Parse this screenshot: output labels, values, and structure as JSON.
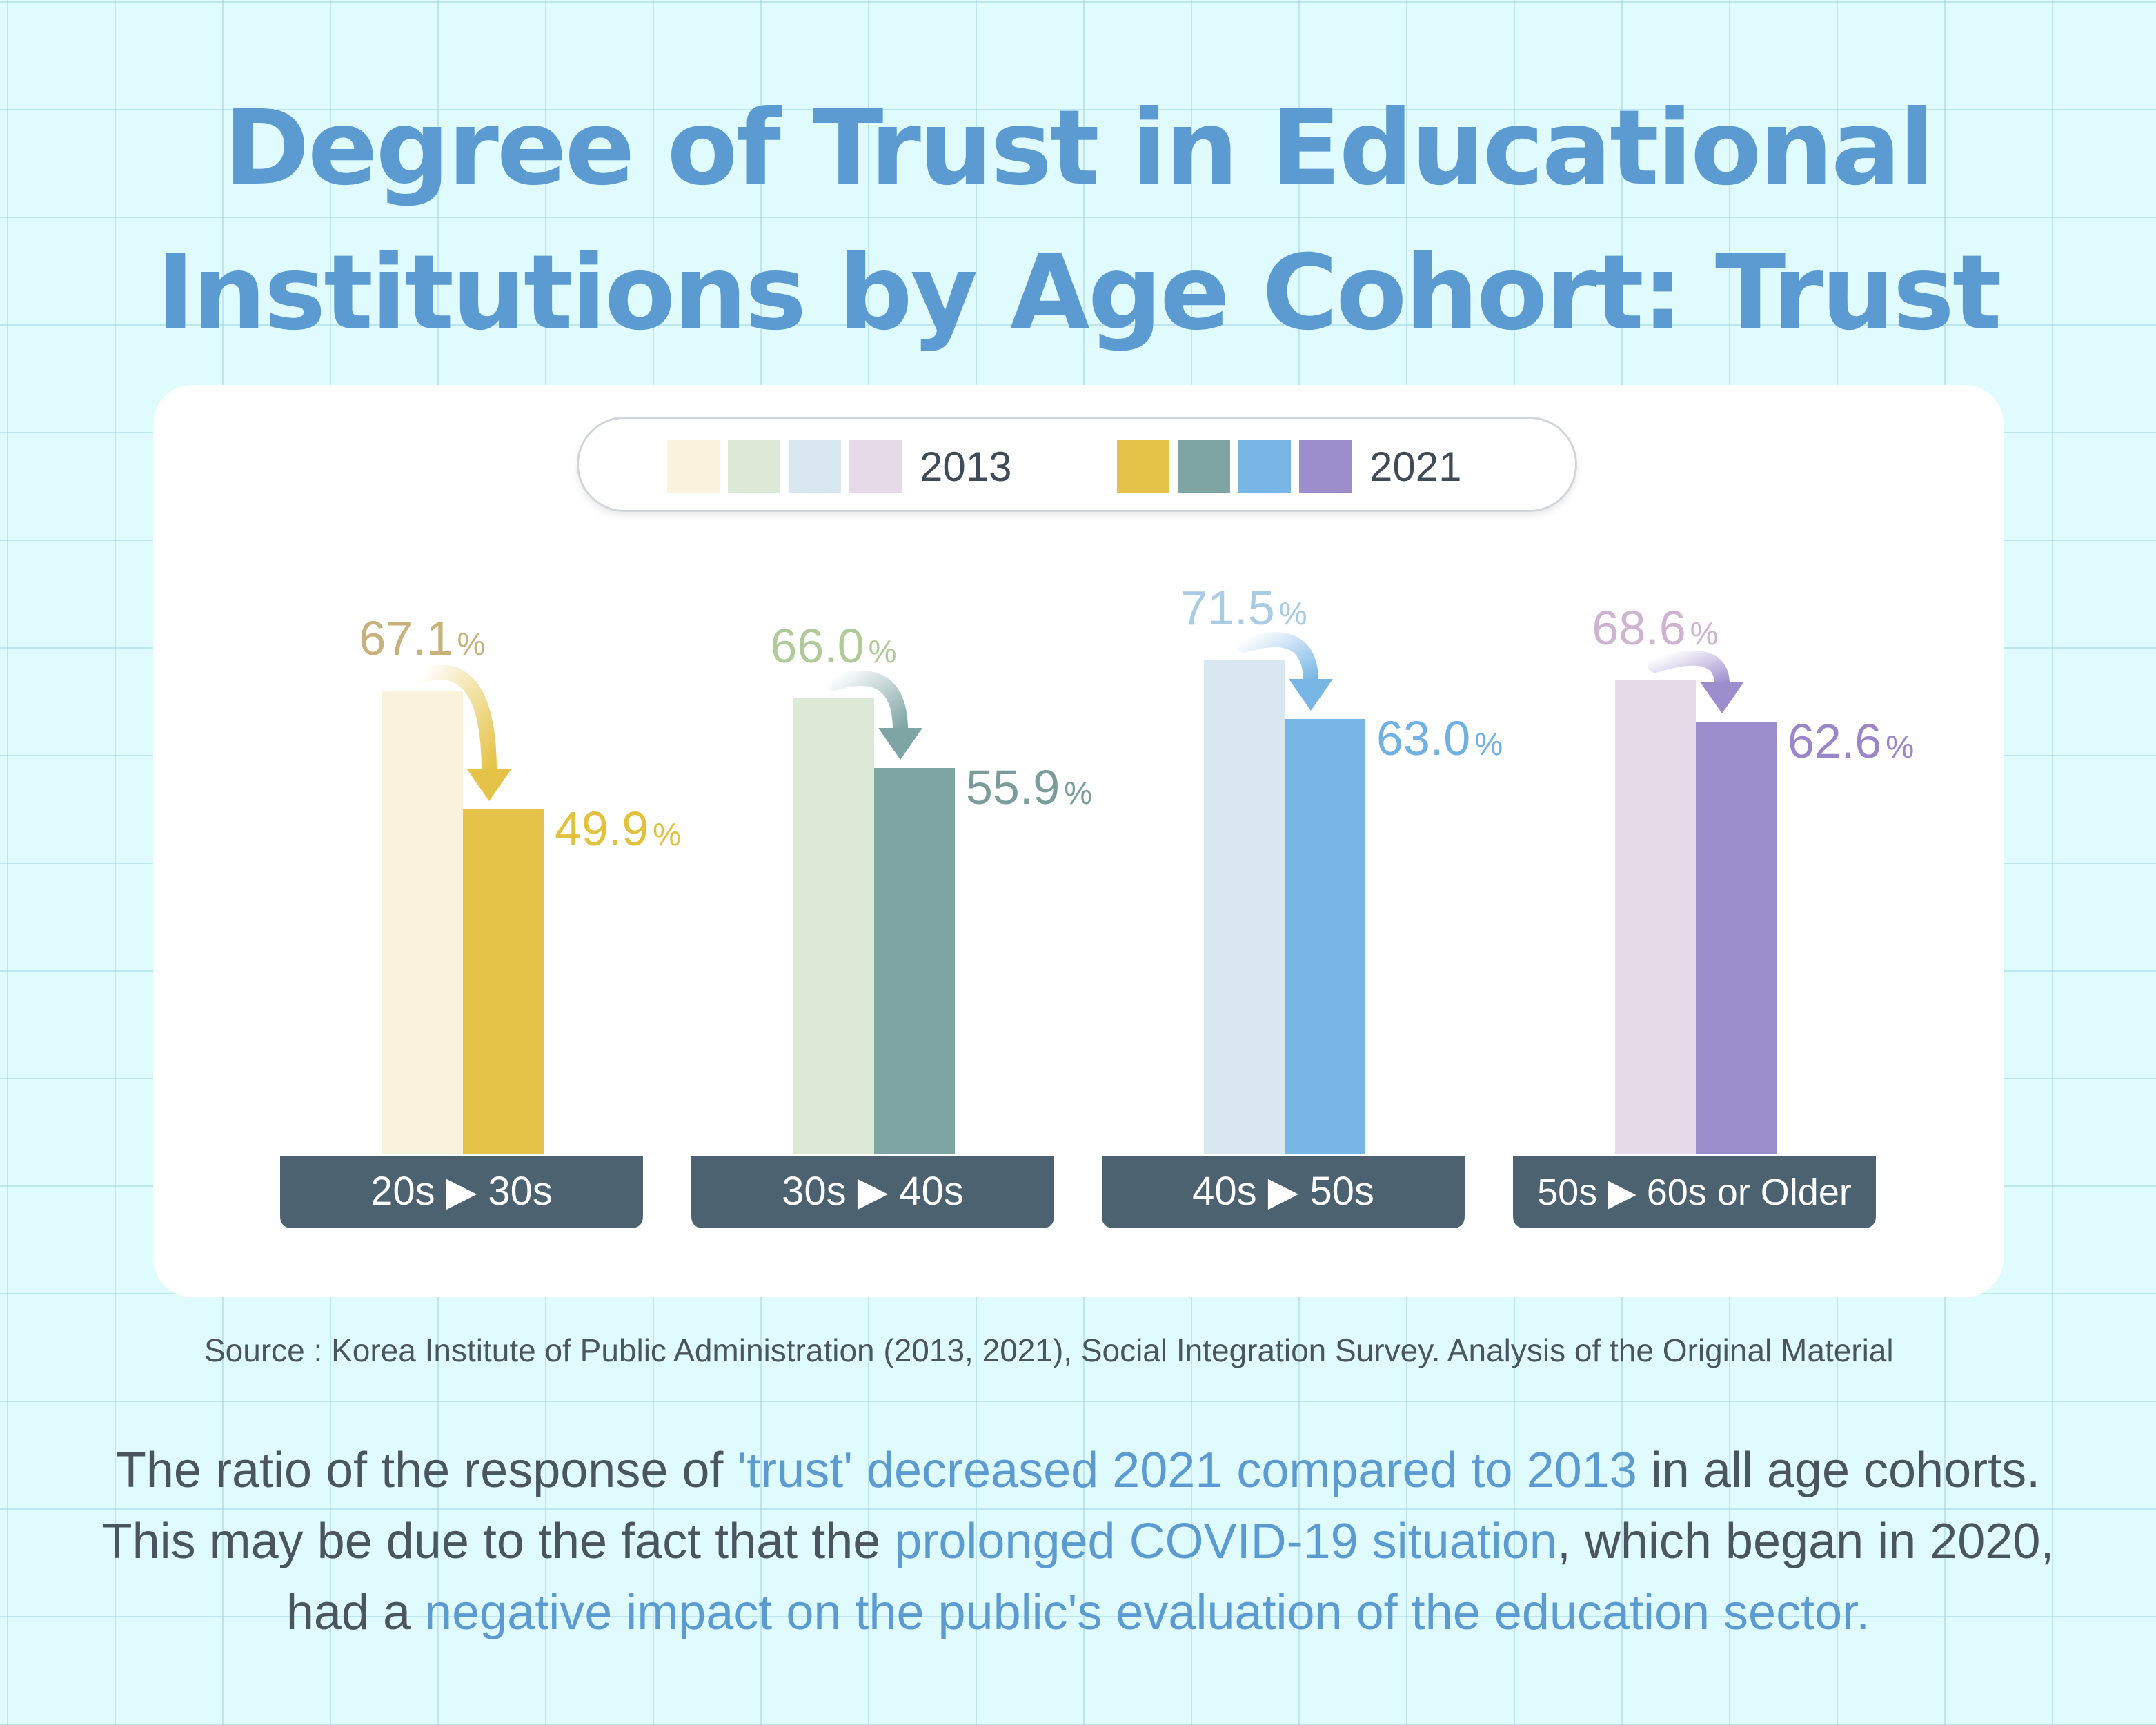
{
  "title": {
    "line1": "Degree of Trust in Educational",
    "line2": "Institutions by Age Cohort: Trust"
  },
  "legend": {
    "label_2013": "2013",
    "label_2021": "2021",
    "colors_2013": [
      "#faf2dc",
      "#dce9d6",
      "#d9e8f0",
      "#e6d9e8"
    ],
    "colors_2021": [
      "#e5c348",
      "#7ea4a4",
      "#78b6e5",
      "#9c8ecd"
    ]
  },
  "chart_data": {
    "type": "bar",
    "title": "Degree of Trust in Educational Institutions by Age Cohort: Trust",
    "unit": "%",
    "categories": [
      "20s ▶ 30s",
      "30s ▶ 40s",
      "40s ▶ 50s",
      "50s ▶ 60s or Older"
    ],
    "series": [
      {
        "name": "2013",
        "values": [
          67.1,
          66.0,
          71.5,
          68.6
        ],
        "colors": [
          "#faf2dc",
          "#dce9d6",
          "#d9e8f0",
          "#e6d9e8"
        ]
      },
      {
        "name": "2021",
        "values": [
          49.9,
          55.9,
          63.0,
          62.6
        ],
        "colors": [
          "#e5c348",
          "#7ea4a4",
          "#78b6e5",
          "#9c8ecd"
        ]
      }
    ],
    "label_colors_2013": [
      "#c8b27c",
      "#b0cb99",
      "#a9cbe3",
      "#cfb3d2"
    ],
    "label_colors_2021": [
      "#e2c13c",
      "#7a9d9c",
      "#6fb1e3",
      "#9a87c9"
    ],
    "grid": false,
    "legend_position": "top-center"
  },
  "source": "Source : Korea Institute of Public Administration (2013, 2021), Social Integration Survey. Analysis of the Original Material",
  "summary": {
    "line1_a": "The ratio of the response of ",
    "line1_b": "'trust' decreased 2021 compared to 2013",
    "line1_c": " in all age cohorts.",
    "line2_a": "This may be due to the fact that the ",
    "line2_b": "prolonged COVID-19 situation",
    "line2_c": ", which began in 2020,",
    "line3_a": "had a ",
    "line3_b": "negative impact on the public's evaluation of the education sector."
  }
}
